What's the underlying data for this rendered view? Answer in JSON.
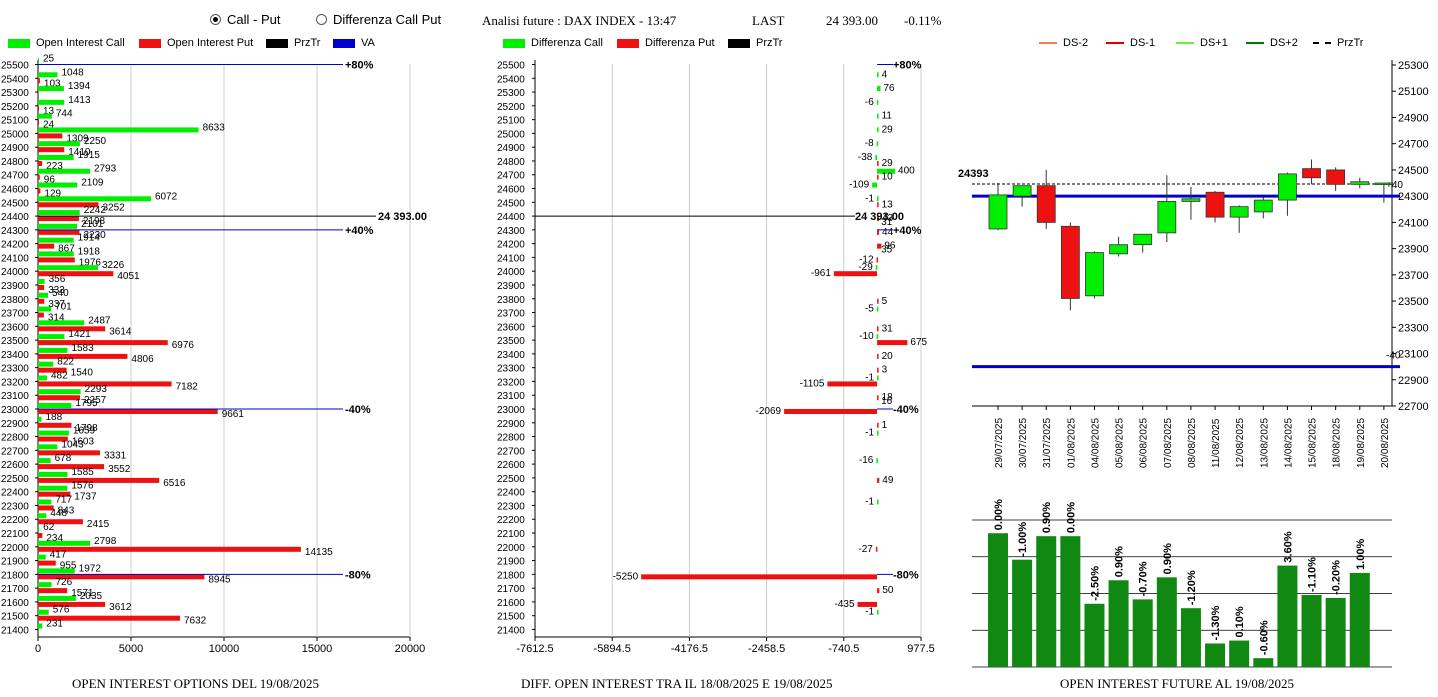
{
  "header": {
    "radio_call_put": "Call - Put",
    "radio_diff": "Differenza Call Put",
    "info": "Analisi future : DAX INDEX - 13:47",
    "last_label": "LAST",
    "last_value": "24 393.00",
    "change": "-0.11%"
  },
  "legends": {
    "chart1": [
      {
        "label": "Open Interest Call",
        "color": "#00ee00",
        "kind": "box"
      },
      {
        "label": "Open Interest Put",
        "color": "#ee1111",
        "kind": "box"
      },
      {
        "label": "PrzTr",
        "color": "#000000",
        "kind": "box"
      },
      {
        "label": "VA",
        "color": "#0000cc",
        "kind": "box"
      }
    ],
    "chart2": [
      {
        "label": "Differenza Call",
        "color": "#00ee00",
        "kind": "box"
      },
      {
        "label": "Differenza Put",
        "color": "#ee1111",
        "kind": "box"
      },
      {
        "label": "PrzTr",
        "color": "#000000",
        "kind": "box"
      }
    ],
    "chart3": [
      {
        "label": "DS-2",
        "color": "#f08050",
        "kind": "line"
      },
      {
        "label": "DS-1",
        "color": "#dd0000",
        "kind": "line"
      },
      {
        "label": "DS+1",
        "color": "#66ee44",
        "kind": "line"
      },
      {
        "label": "DS+2",
        "color": "#007700",
        "kind": "line"
      },
      {
        "label": "PrzTr",
        "color": "#000000",
        "kind": "dash"
      }
    ]
  },
  "titles": {
    "chart1": "OPEN INTEREST OPTIONS DEL 19/08/2025",
    "chart2": "DIFF. OPEN INTEREST TRA IL 18/08/2025 E 19/08/2025",
    "chart3": "OPEN INTEREST FUTURE AL 19/08/2025"
  },
  "colors": {
    "call": "#00ee00",
    "put": "#ee1111",
    "va": "#0000cc",
    "up": "#00ee00",
    "down": "#ee1111",
    "oibar": "#118811"
  },
  "chart_data": [
    {
      "type": "bar",
      "title": "OPEN INTEREST OPTIONS DEL 19/08/2025",
      "strikes": [
        25500,
        25400,
        25300,
        25200,
        25100,
        25000,
        24900,
        24800,
        24700,
        24600,
        24500,
        24400,
        24300,
        24200,
        24100,
        24000,
        23900,
        23800,
        23700,
        23600,
        23500,
        23400,
        23300,
        23200,
        23100,
        23000,
        22900,
        22800,
        22700,
        22600,
        22500,
        22400,
        22300,
        22200,
        22100,
        22000,
        21900,
        21800,
        21700,
        21600,
        21500,
        21400
      ],
      "series": [
        {
          "name": "Open Interest Call",
          "values": [
            25,
            1048,
            1394,
            1413,
            744,
            8633,
            2250,
            1915,
            2793,
            2109,
            6072,
            2242,
            2101,
            1914,
            1918,
            3226,
            356,
            540,
            701,
            2487,
            1421,
            1583,
            822,
            482,
            2293,
            1795,
            188,
            1659,
            1043,
            678,
            1585,
            1576,
            717,
            448,
            62,
            2798,
            417,
            1972,
            726,
            2035,
            576,
            231
          ]
        },
        {
          "name": "Open Interest Put",
          "values": [
            null,
            103,
            null,
            13,
            24,
            1309,
            1410,
            223,
            96,
            129,
            3252,
            2198,
            2230,
            867,
            1976,
            4051,
            333,
            337,
            314,
            3614,
            6976,
            4806,
            1540,
            7182,
            2257,
            9661,
            1798,
            1603,
            3331,
            3552,
            6516,
            1737,
            843,
            2415,
            234,
            14135,
            955,
            8945,
            1571,
            3612,
            7632,
            null
          ]
        }
      ],
      "xticks": [
        "0",
        "5000",
        "10000",
        "15000",
        "20000"
      ],
      "xlim": [
        0,
        20000
      ],
      "va_lines": [
        {
          "strike": 25500,
          "label": "+80%"
        },
        {
          "strike": 24300,
          "label": "+40%"
        },
        {
          "strike": 23000,
          "label": "-40%"
        },
        {
          "strike": 21800,
          "label": "-80%"
        }
      ],
      "przTr": {
        "value": 24400,
        "label": "24 393.00"
      }
    },
    {
      "type": "bar",
      "title": "DIFF. OPEN INTEREST TRA IL 18/08/2025 E 19/08/2025",
      "strikes": [
        25500,
        25400,
        25300,
        25200,
        25100,
        25000,
        24900,
        24800,
        24700,
        24600,
        24500,
        24400,
        24300,
        24200,
        24100,
        24000,
        23900,
        23800,
        23700,
        23600,
        23500,
        23400,
        23300,
        23200,
        23100,
        23000,
        22900,
        22800,
        22700,
        22600,
        22500,
        22400,
        22300,
        22200,
        22100,
        22000,
        21900,
        21800,
        21700,
        21600,
        21500,
        21400
      ],
      "series": [
        {
          "name": "Differenza Call",
          "values": [
            null,
            4,
            76,
            -6,
            11,
            29,
            -8,
            -38,
            400,
            -109,
            -1,
            null,
            null,
            null,
            null,
            -29,
            null,
            null,
            -5,
            null,
            -10,
            null,
            null,
            -1,
            null,
            null,
            null,
            -1,
            null,
            -16,
            null,
            null,
            -1,
            null,
            null,
            null,
            null,
            null,
            null,
            null,
            -1,
            null
          ]
        },
        {
          "name": "Differenza Put",
          "values": [
            null,
            null,
            null,
            null,
            null,
            null,
            null,
            29,
            10,
            null,
            13,
            43,
            44,
            96,
            -12,
            -961,
            null,
            5,
            null,
            31,
            675,
            20,
            3,
            -1105,
            18,
            -2069,
            1,
            null,
            null,
            null,
            49,
            null,
            null,
            null,
            null,
            -27,
            null,
            -5250,
            50,
            -435,
            null,
            null
          ]
        }
      ],
      "extra_labels": [
        {
          "strike": 24400,
          "text": "31"
        },
        {
          "strike": 24200,
          "text": "35"
        },
        {
          "strike": 23100,
          "text": "16"
        }
      ],
      "xticks": [
        "-7612.5",
        "-5894.5",
        "-4176.5",
        "-2458.5",
        "-740.5",
        "977.5"
      ],
      "xlim": [
        -7612.5,
        977.5
      ],
      "va_lines": [
        {
          "strike": 25500,
          "label": "+80%"
        },
        {
          "strike": 24300,
          "label": "+40%"
        },
        {
          "strike": 23000,
          "label": "-40%"
        },
        {
          "strike": 21800,
          "label": "-80%"
        }
      ],
      "przTr": {
        "value": 24400,
        "label": "24 393.00"
      }
    },
    {
      "type": "candlestick",
      "dates": [
        "29/07/2025",
        "30/07/2025",
        "31/07/2025",
        "01/08/2025",
        "04/08/2025",
        "05/08/2025",
        "06/08/2025",
        "07/08/2025",
        "08/08/2025",
        "11/08/2025",
        "12/08/2025",
        "13/08/2025",
        "14/08/2025",
        "15/08/2025",
        "18/08/2025",
        "19/08/2025",
        "20/08/2025"
      ],
      "candles": [
        {
          "o": 24050,
          "h": 24400,
          "l": 24040,
          "c": 24310
        },
        {
          "o": 24300,
          "h": 24380,
          "l": 24220,
          "c": 24380
        },
        {
          "o": 24380,
          "h": 24500,
          "l": 24050,
          "c": 24100
        },
        {
          "o": 24070,
          "h": 24100,
          "l": 23430,
          "c": 23520
        },
        {
          "o": 23540,
          "h": 23880,
          "l": 23520,
          "c": 23870
        },
        {
          "o": 23860,
          "h": 23990,
          "l": 23840,
          "c": 23930
        },
        {
          "o": 23930,
          "h": 24000,
          "l": 23870,
          "c": 24010
        },
        {
          "o": 24020,
          "h": 24460,
          "l": 23950,
          "c": 24260
        },
        {
          "o": 24260,
          "h": 24370,
          "l": 24120,
          "c": 24280
        },
        {
          "o": 24330,
          "h": 24340,
          "l": 24100,
          "c": 24140
        },
        {
          "o": 24140,
          "h": 24230,
          "l": 24020,
          "c": 24220
        },
        {
          "o": 24180,
          "h": 24290,
          "l": 24130,
          "c": 24270
        },
        {
          "o": 24270,
          "h": 24480,
          "l": 24150,
          "c": 24470
        },
        {
          "o": 24510,
          "h": 24580,
          "l": 24390,
          "c": 24440
        },
        {
          "o": 24500,
          "h": 24520,
          "l": 24340,
          "c": 24390
        },
        {
          "o": 24390,
          "h": 24440,
          "l": 24360,
          "c": 24410
        },
        {
          "o": 24400,
          "h": 24400,
          "l": 24250,
          "c": 24400
        }
      ],
      "yticks": [
        "25300",
        "25100",
        "24900",
        "24700",
        "24500",
        "24300",
        "24100",
        "23900",
        "23700",
        "23500",
        "23300",
        "23100",
        "22900",
        "22700"
      ],
      "ylim": [
        22700,
        25300
      ],
      "last_value": 24393,
      "last_label": "24393",
      "va_high": {
        "value": 24300,
        "label": "+40"
      },
      "va_low": {
        "value": 23000,
        "label": "-40"
      }
    },
    {
      "type": "bar",
      "title": "OPEN INTEREST FUTURE AL 19/08/2025",
      "categories": [
        "29/07/2025",
        "30/07/2025",
        "31/07/2025",
        "01/08/2025",
        "04/08/2025",
        "05/08/2025",
        "06/08/2025",
        "07/08/2025",
        "08/08/2025",
        "11/08/2025",
        "12/08/2025",
        "13/08/2025",
        "14/08/2025",
        "15/08/2025",
        "18/08/2025",
        "19/08/2025"
      ],
      "values": [
        91,
        73,
        89,
        89,
        43,
        59,
        46,
        61,
        40,
        16,
        18,
        6,
        69,
        49,
        47,
        64
      ],
      "labels": [
        "0.00%",
        "-1.00%",
        "0.90%",
        "0.00%",
        "-2.50%",
        "0.90%",
        "-0.70%",
        "0.90%",
        "-1.20%",
        "-1.30%",
        "0.10%",
        "-0.60%",
        "3.60%",
        "-1.10%",
        "-0.20%",
        "1.00%"
      ],
      "ylim": [
        0,
        100
      ]
    }
  ]
}
